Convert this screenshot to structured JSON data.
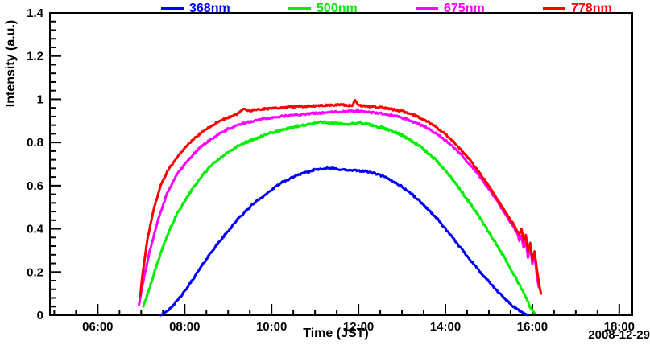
{
  "chart_data": {
    "type": "line",
    "title": "",
    "xlabel": "Time (JST)",
    "ylabel": "Intensity (a.u.)",
    "annotation": "2008-12-29",
    "axis_color": "#000000",
    "background": "#ffffff",
    "grid": false,
    "xlim_hours": [
      4.9,
      18.3
    ],
    "ylim": [
      0,
      1.4
    ],
    "x_major_ticks": [
      {
        "hour": 6,
        "label": "06:00"
      },
      {
        "hour": 8,
        "label": "08:00"
      },
      {
        "hour": 10,
        "label": "10:00"
      },
      {
        "hour": 12,
        "label": "12:00"
      },
      {
        "hour": 14,
        "label": "14:00"
      },
      {
        "hour": 16,
        "label": "16:00"
      },
      {
        "hour": 18,
        "label": "18:00"
      }
    ],
    "x_minor_step_hours": 0.5,
    "y_major_ticks": [
      {
        "value": 0,
        "label": "0"
      },
      {
        "value": 0.2,
        "label": "0.2"
      },
      {
        "value": 0.4,
        "label": "0.4"
      },
      {
        "value": 0.6,
        "label": "0.6"
      },
      {
        "value": 0.8,
        "label": "0.8"
      },
      {
        "value": 1,
        "label": "1"
      },
      {
        "value": 1.2,
        "label": "1.2"
      },
      {
        "value": 1.4,
        "label": "1.4"
      }
    ],
    "y_minor_step": 0.04,
    "legend": {
      "position": "top",
      "entries": [
        {
          "name": "368nm",
          "color": "#0000ff"
        },
        {
          "name": "500nm",
          "color": "#00ee00"
        },
        {
          "name": "675nm",
          "color": "#ff00ff"
        },
        {
          "name": "778nm",
          "color": "#ff0000"
        }
      ]
    },
    "line_width": 3,
    "series": [
      {
        "name": "368nm",
        "color": "#0000ff",
        "noise": 0.004,
        "points": [
          [
            7.45,
            0.0
          ],
          [
            7.6,
            0.02
          ],
          [
            7.8,
            0.06
          ],
          [
            8.0,
            0.11
          ],
          [
            8.2,
            0.17
          ],
          [
            8.4,
            0.23
          ],
          [
            8.6,
            0.29
          ],
          [
            8.8,
            0.34
          ],
          [
            9.0,
            0.39
          ],
          [
            9.2,
            0.44
          ],
          [
            9.4,
            0.48
          ],
          [
            9.6,
            0.52
          ],
          [
            9.8,
            0.55
          ],
          [
            10.0,
            0.58
          ],
          [
            10.2,
            0.61
          ],
          [
            10.4,
            0.63
          ],
          [
            10.6,
            0.65
          ],
          [
            10.8,
            0.66
          ],
          [
            11.0,
            0.675
          ],
          [
            11.2,
            0.68
          ],
          [
            11.4,
            0.68
          ],
          [
            11.6,
            0.675
          ],
          [
            11.8,
            0.67
          ],
          [
            12.0,
            0.67
          ],
          [
            12.2,
            0.665
          ],
          [
            12.4,
            0.655
          ],
          [
            12.6,
            0.64
          ],
          [
            12.8,
            0.62
          ],
          [
            13.0,
            0.595
          ],
          [
            13.2,
            0.565
          ],
          [
            13.4,
            0.53
          ],
          [
            13.6,
            0.49
          ],
          [
            13.8,
            0.45
          ],
          [
            14.0,
            0.4
          ],
          [
            14.2,
            0.35
          ],
          [
            14.4,
            0.3
          ],
          [
            14.6,
            0.25
          ],
          [
            14.8,
            0.2
          ],
          [
            15.0,
            0.155
          ],
          [
            15.2,
            0.11
          ],
          [
            15.4,
            0.07
          ],
          [
            15.6,
            0.035
          ],
          [
            15.8,
            0.01
          ],
          [
            15.9,
            0.0
          ]
        ]
      },
      {
        "name": "500nm",
        "color": "#00ee00",
        "noise": 0.005,
        "points": [
          [
            7.05,
            0.04
          ],
          [
            7.2,
            0.13
          ],
          [
            7.4,
            0.26
          ],
          [
            7.6,
            0.37
          ],
          [
            7.8,
            0.46
          ],
          [
            8.0,
            0.53
          ],
          [
            8.2,
            0.59
          ],
          [
            8.4,
            0.645
          ],
          [
            8.6,
            0.69
          ],
          [
            8.8,
            0.725
          ],
          [
            9.0,
            0.755
          ],
          [
            9.2,
            0.78
          ],
          [
            9.4,
            0.8
          ],
          [
            9.6,
            0.815
          ],
          [
            9.8,
            0.83
          ],
          [
            10.0,
            0.845
          ],
          [
            10.2,
            0.855
          ],
          [
            10.4,
            0.865
          ],
          [
            10.6,
            0.875
          ],
          [
            10.8,
            0.882
          ],
          [
            11.0,
            0.89
          ],
          [
            11.2,
            0.895
          ],
          [
            11.4,
            0.89
          ],
          [
            11.6,
            0.885
          ],
          [
            11.8,
            0.885
          ],
          [
            12.0,
            0.89
          ],
          [
            12.2,
            0.885
          ],
          [
            12.4,
            0.875
          ],
          [
            12.6,
            0.865
          ],
          [
            12.8,
            0.85
          ],
          [
            13.0,
            0.835
          ],
          [
            13.2,
            0.81
          ],
          [
            13.4,
            0.785
          ],
          [
            13.6,
            0.75
          ],
          [
            13.8,
            0.715
          ],
          [
            14.0,
            0.67
          ],
          [
            14.2,
            0.62
          ],
          [
            14.4,
            0.565
          ],
          [
            14.6,
            0.51
          ],
          [
            14.8,
            0.45
          ],
          [
            15.0,
            0.385
          ],
          [
            15.2,
            0.32
          ],
          [
            15.4,
            0.25
          ],
          [
            15.6,
            0.18
          ],
          [
            15.8,
            0.105
          ],
          [
            15.95,
            0.04
          ],
          [
            16.05,
            0.01
          ]
        ]
      },
      {
        "name": "675nm",
        "color": "#ff00ff",
        "noise": 0.004,
        "points": [
          [
            6.95,
            0.05
          ],
          [
            7.05,
            0.16
          ],
          [
            7.2,
            0.3
          ],
          [
            7.4,
            0.45
          ],
          [
            7.6,
            0.565
          ],
          [
            7.8,
            0.645
          ],
          [
            8.0,
            0.7
          ],
          [
            8.2,
            0.745
          ],
          [
            8.4,
            0.785
          ],
          [
            8.6,
            0.815
          ],
          [
            8.8,
            0.84
          ],
          [
            9.0,
            0.862
          ],
          [
            9.2,
            0.878
          ],
          [
            9.4,
            0.89
          ],
          [
            9.6,
            0.9
          ],
          [
            9.8,
            0.908
          ],
          [
            10.0,
            0.915
          ],
          [
            10.3,
            0.922
          ],
          [
            10.6,
            0.928
          ],
          [
            11.0,
            0.935
          ],
          [
            11.4,
            0.94
          ],
          [
            11.8,
            0.945
          ],
          [
            12.0,
            0.945
          ],
          [
            12.2,
            0.94
          ],
          [
            12.5,
            0.935
          ],
          [
            12.8,
            0.925
          ],
          [
            13.0,
            0.915
          ],
          [
            13.2,
            0.9
          ],
          [
            13.4,
            0.885
          ],
          [
            13.6,
            0.865
          ],
          [
            13.8,
            0.84
          ],
          [
            14.0,
            0.81
          ],
          [
            14.2,
            0.775
          ],
          [
            14.4,
            0.735
          ],
          [
            14.6,
            0.69
          ],
          [
            14.8,
            0.64
          ],
          [
            15.0,
            0.585
          ],
          [
            15.2,
            0.525
          ],
          [
            15.4,
            0.46
          ],
          [
            15.55,
            0.415
          ],
          [
            15.65,
            0.38
          ],
          [
            15.7,
            0.345
          ],
          [
            15.75,
            0.37
          ],
          [
            15.8,
            0.31
          ],
          [
            15.85,
            0.345
          ],
          [
            15.9,
            0.27
          ],
          [
            15.95,
            0.315
          ],
          [
            16.0,
            0.24
          ],
          [
            16.05,
            0.28
          ],
          [
            16.1,
            0.19
          ],
          [
            16.15,
            0.13
          ]
        ]
      },
      {
        "name": "778nm",
        "color": "#ff0000",
        "noise": 0.004,
        "points": [
          [
            6.98,
            0.09
          ],
          [
            7.05,
            0.22
          ],
          [
            7.15,
            0.36
          ],
          [
            7.3,
            0.5
          ],
          [
            7.45,
            0.6
          ],
          [
            7.6,
            0.665
          ],
          [
            7.8,
            0.725
          ],
          [
            8.0,
            0.775
          ],
          [
            8.2,
            0.815
          ],
          [
            8.4,
            0.848
          ],
          [
            8.6,
            0.875
          ],
          [
            8.8,
            0.898
          ],
          [
            9.0,
            0.915
          ],
          [
            9.2,
            0.93
          ],
          [
            9.35,
            0.955
          ],
          [
            9.45,
            0.945
          ],
          [
            9.6,
            0.95
          ],
          [
            9.8,
            0.955
          ],
          [
            10.0,
            0.958
          ],
          [
            10.3,
            0.962
          ],
          [
            10.6,
            0.966
          ],
          [
            11.0,
            0.97
          ],
          [
            11.3,
            0.973
          ],
          [
            11.6,
            0.975
          ],
          [
            11.85,
            0.97
          ],
          [
            11.92,
            0.995
          ],
          [
            12.0,
            0.972
          ],
          [
            12.2,
            0.968
          ],
          [
            12.5,
            0.962
          ],
          [
            12.8,
            0.952
          ],
          [
            13.0,
            0.945
          ],
          [
            13.2,
            0.932
          ],
          [
            13.4,
            0.915
          ],
          [
            13.6,
            0.895
          ],
          [
            13.8,
            0.868
          ],
          [
            14.0,
            0.838
          ],
          [
            14.2,
            0.8
          ],
          [
            14.4,
            0.758
          ],
          [
            14.6,
            0.71
          ],
          [
            14.8,
            0.655
          ],
          [
            15.0,
            0.6
          ],
          [
            15.2,
            0.535
          ],
          [
            15.4,
            0.47
          ],
          [
            15.6,
            0.41
          ],
          [
            15.7,
            0.375
          ],
          [
            15.75,
            0.4
          ],
          [
            15.8,
            0.345
          ],
          [
            15.85,
            0.375
          ],
          [
            15.9,
            0.3
          ],
          [
            15.95,
            0.335
          ],
          [
            16.0,
            0.26
          ],
          [
            16.05,
            0.295
          ],
          [
            16.1,
            0.22
          ],
          [
            16.15,
            0.15
          ],
          [
            16.2,
            0.1
          ]
        ]
      }
    ]
  }
}
